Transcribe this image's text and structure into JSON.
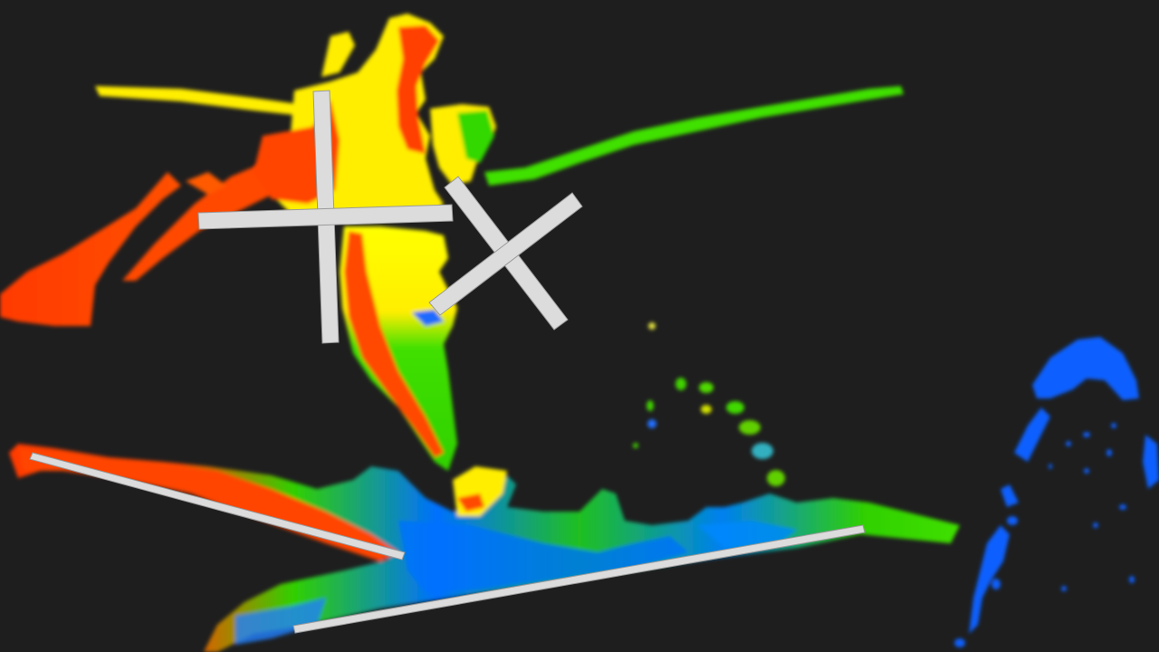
{
  "scene": {
    "background": "#1e1e1e",
    "colormap": [
      "#0050ff",
      "#00a0ff",
      "#00e000",
      "#40e000",
      "#ffff00",
      "#ff3000"
    ],
    "marker_color": "#dcdcdc"
  }
}
